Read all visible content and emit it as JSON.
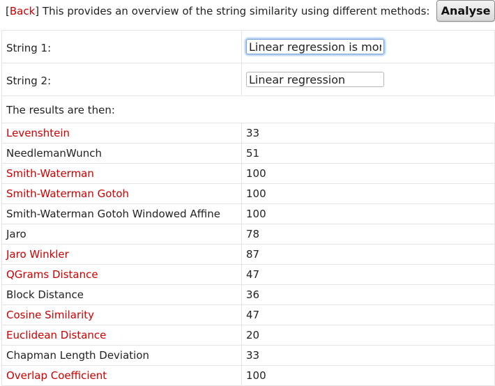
{
  "header": {
    "bracket_open": "[",
    "back_label": "Back",
    "bracket_close": "]",
    "description": " This provides an overview of the string similarity using different methods:",
    "analyse_label": "Analyse"
  },
  "form": {
    "string1_label": "String 1:",
    "string1_value": "Linear regression is more",
    "string2_label": "String 2:",
    "string2_value": "Linear regression",
    "results_label": "The results are then:"
  },
  "results": [
    {
      "method": "Levenshtein",
      "score": "33",
      "linked": true
    },
    {
      "method": "NeedlemanWunch",
      "score": "51",
      "linked": false
    },
    {
      "method": "Smith-Waterman",
      "score": "100",
      "linked": true
    },
    {
      "method": "Smith-Waterman Gotoh",
      "score": "100",
      "linked": true
    },
    {
      "method": "Smith-Waterman Gotoh Windowed Affine",
      "score": "100",
      "linked": false
    },
    {
      "method": "Jaro",
      "score": "78",
      "linked": false
    },
    {
      "method": "Jaro Winkler",
      "score": "87",
      "linked": true
    },
    {
      "method": "QGrams Distance",
      "score": "47",
      "linked": true
    },
    {
      "method": "Block Distance",
      "score": "36",
      "linked": false
    },
    {
      "method": "Cosine Similarity",
      "score": "47",
      "linked": true
    },
    {
      "method": "Euclidean Distance",
      "score": "20",
      "linked": true
    },
    {
      "method": "Chapman Length Deviation",
      "score": "33",
      "linked": false
    },
    {
      "method": "Overlap Coefficient",
      "score": "100",
      "linked": true
    }
  ],
  "colors": {
    "link": "#cc0000",
    "text": "#222222",
    "border": "#e4e4e4",
    "focus": "#a9c9f3"
  }
}
